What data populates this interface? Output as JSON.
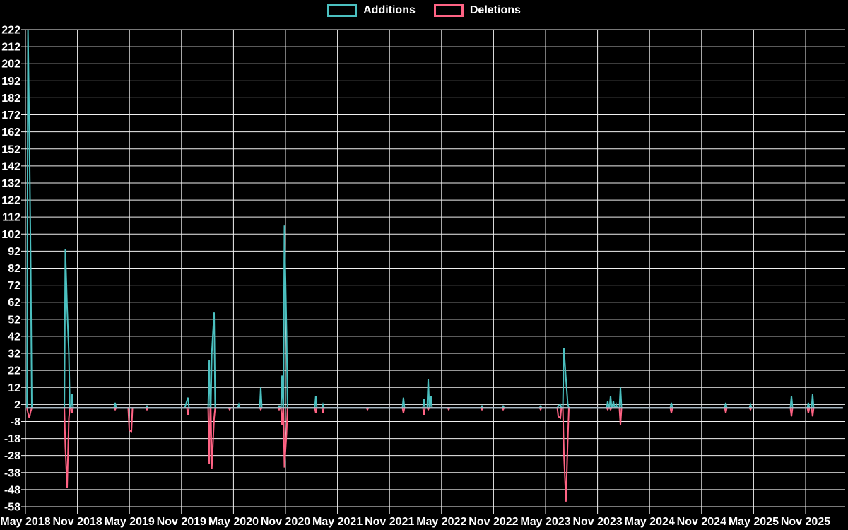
{
  "legend": {
    "additions": {
      "label": "Additions",
      "color": "#4bc0c0"
    },
    "deletions": {
      "label": "Deletions",
      "color": "#ff6384"
    }
  },
  "chart_data": {
    "type": "line",
    "title": "",
    "subtitle": "",
    "legend_position": "top",
    "grid": true,
    "background_color": "#000000",
    "grid_color": "#f0f0f0",
    "text_color": "#ffffff",
    "baseline_overlay_color": "#a9b6c2",
    "x_unit": "months since May 2018 tick",
    "x_axis": {
      "tick_labels": [
        "May 2018",
        "Nov 2018",
        "May 2019",
        "Nov 2019",
        "May 2020",
        "Nov 2020",
        "May 2021",
        "Nov 2021",
        "May 2022",
        "Nov 2022",
        "May 2023",
        "Nov 2023",
        "May 2024",
        "Nov 2024",
        "May 2025",
        "Nov 2025"
      ],
      "tick_interval_months": 6,
      "data_start_month": 0.13,
      "data_end_month": 94.3
    },
    "y_axis": {
      "min": -58,
      "max": 222,
      "tick_step": 10,
      "tick_labels": [
        222,
        212,
        202,
        192,
        182,
        172,
        162,
        152,
        142,
        132,
        122,
        112,
        102,
        92,
        82,
        72,
        62,
        52,
        42,
        32,
        22,
        12,
        2,
        -8,
        -18,
        -28,
        -38,
        -48,
        -58
      ]
    },
    "series": [
      {
        "name": "Additions",
        "color": "#4bc0c0",
        "baseline": 0,
        "points": [
          [
            0.29,
            222
          ],
          [
            0.45,
            162
          ],
          [
            0.61,
            83
          ],
          [
            4.61,
            93
          ],
          [
            4.81,
            59
          ],
          [
            5.01,
            31
          ],
          [
            5.38,
            8
          ],
          [
            10.35,
            3
          ],
          [
            14.02,
            1
          ],
          [
            18.5,
            2
          ],
          [
            18.75,
            6
          ],
          [
            21.2,
            28
          ],
          [
            21.5,
            32
          ],
          [
            21.77,
            56
          ],
          [
            24.62,
            2
          ],
          [
            27.15,
            12
          ],
          [
            29.27,
            1
          ],
          [
            29.6,
            19
          ],
          [
            29.88,
            107
          ],
          [
            30.12,
            44
          ],
          [
            33.5,
            7
          ],
          [
            34.32,
            2
          ],
          [
            43.61,
            6
          ],
          [
            45.98,
            5
          ],
          [
            46.47,
            17
          ],
          [
            46.79,
            7
          ],
          [
            52.66,
            1
          ],
          [
            55.11,
            1
          ],
          [
            59.43,
            1
          ],
          [
            61.47,
            1
          ],
          [
            61.71,
            2
          ],
          [
            62.12,
            35
          ],
          [
            62.36,
            17
          ],
          [
            62.57,
            2
          ],
          [
            67.17,
            4
          ],
          [
            67.5,
            7
          ],
          [
            67.83,
            4
          ],
          [
            68.15,
            2
          ],
          [
            68.64,
            12
          ],
          [
            74.51,
            3
          ],
          [
            80.79,
            3
          ],
          [
            83.64,
            2
          ],
          [
            88.37,
            7
          ],
          [
            90.32,
            3
          ],
          [
            90.81,
            8
          ]
        ]
      },
      {
        "name": "Deletions",
        "color": "#ff6384",
        "baseline": 0,
        "points": [
          [
            0.29,
            -3
          ],
          [
            0.45,
            -6
          ],
          [
            0.61,
            -2
          ],
          [
            4.61,
            -23
          ],
          [
            4.81,
            -47
          ],
          [
            5.01,
            -6
          ],
          [
            5.38,
            -3
          ],
          [
            10.35,
            -1
          ],
          [
            11.98,
            -13
          ],
          [
            12.23,
            -14
          ],
          [
            14.02,
            -1
          ],
          [
            18.75,
            -4
          ],
          [
            21.2,
            -33
          ],
          [
            21.5,
            -36
          ],
          [
            21.77,
            -6
          ],
          [
            23.56,
            -1
          ],
          [
            27.15,
            -1
          ],
          [
            29.27,
            -1
          ],
          [
            29.6,
            -10
          ],
          [
            29.88,
            -35
          ],
          [
            30.12,
            -15
          ],
          [
            33.5,
            -3
          ],
          [
            34.32,
            -3
          ],
          [
            39.46,
            -1
          ],
          [
            43.61,
            -3
          ],
          [
            45.98,
            -4
          ],
          [
            46.47,
            -1
          ],
          [
            48.83,
            -1
          ],
          [
            52.66,
            -1
          ],
          [
            55.11,
            -1
          ],
          [
            59.43,
            -1
          ],
          [
            61.47,
            -5
          ],
          [
            61.71,
            -6
          ],
          [
            62.12,
            -27
          ],
          [
            62.36,
            -55
          ],
          [
            62.57,
            -18
          ],
          [
            67.17,
            -1
          ],
          [
            67.5,
            -1
          ],
          [
            68.64,
            -10
          ],
          [
            74.51,
            -3
          ],
          [
            80.79,
            -3
          ],
          [
            83.64,
            -1
          ],
          [
            88.37,
            -5
          ],
          [
            90.32,
            -3
          ],
          [
            90.81,
            -5
          ]
        ]
      }
    ]
  }
}
